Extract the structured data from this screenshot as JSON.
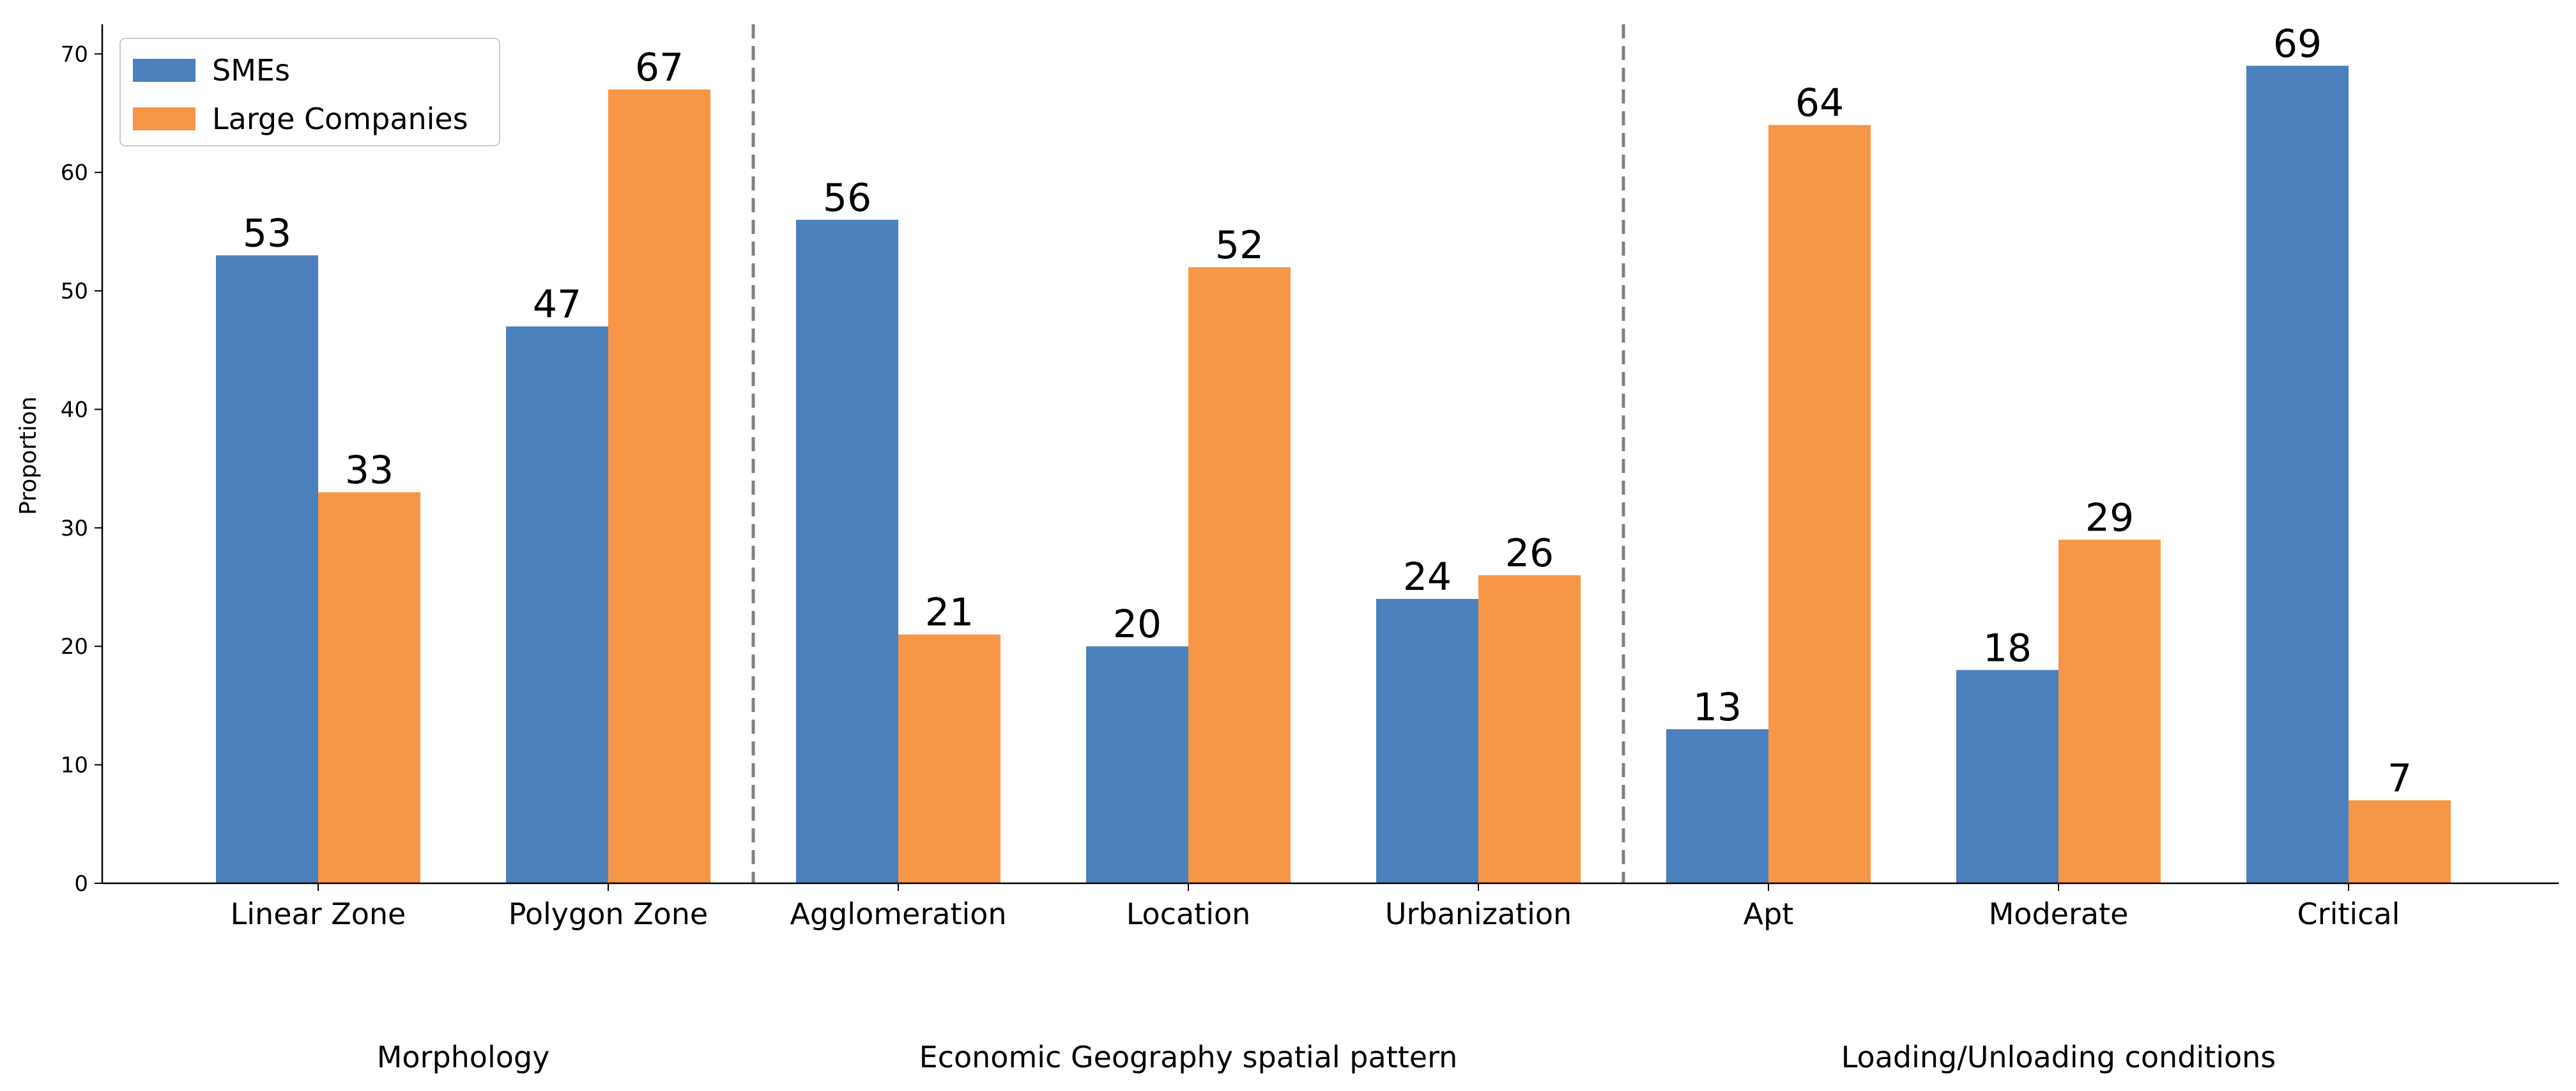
{
  "chart_data": {
    "type": "bar",
    "categories": [
      "Linear Zone",
      "Polygon Zone",
      "Agglomeration",
      "Location",
      "Urbanization",
      "Apt",
      "Moderate",
      "Critical"
    ],
    "series": [
      {
        "name": "SMEs",
        "color": "#4c80bd",
        "values": [
          53,
          47,
          56,
          20,
          24,
          13,
          18,
          69
        ]
      },
      {
        "name": "Large Companies",
        "color": "#f79646",
        "values": [
          33,
          67,
          21,
          52,
          26,
          64,
          29,
          7
        ]
      }
    ],
    "groups": [
      {
        "label": "Morphology",
        "categories": [
          "Linear Zone",
          "Polygon Zone"
        ]
      },
      {
        "label": "Economic Geography spatial pattern",
        "categories": [
          "Agglomeration",
          "Location",
          "Urbanization"
        ]
      },
      {
        "label": "Loading/Unloading conditions",
        "categories": [
          "Apt",
          "Moderate",
          "Critical"
        ]
      }
    ],
    "title": "",
    "xlabel": "",
    "ylabel": "Proportion",
    "ylim": [
      0,
      72.5
    ],
    "yticks": [
      0,
      10,
      20,
      30,
      40,
      50,
      60,
      70
    ],
    "grid": false,
    "legend": "top-left"
  }
}
